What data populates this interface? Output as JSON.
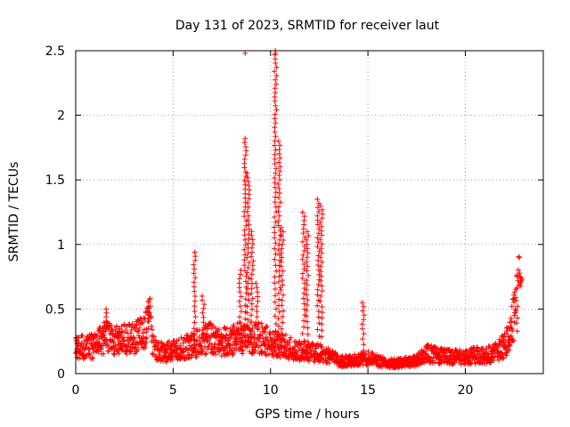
{
  "chart_data": {
    "type": "scatter",
    "title": "Day 131 of 2023, SRMTID for receiver laut",
    "xlabel": "GPS time / hours",
    "ylabel": "SRMTID / TECUs",
    "xlim": [
      0,
      24
    ],
    "ylim": [
      0,
      2.5
    ],
    "xticks": [
      0,
      5,
      10,
      15,
      20
    ],
    "xtick_labels": [
      "0",
      "5",
      "10",
      "15",
      "20"
    ],
    "yticks": [
      0,
      0.5,
      1,
      1.5,
      2,
      2.5
    ],
    "ytick_labels": [
      "0",
      "0.5",
      "1",
      "1.5",
      "2",
      "2.5"
    ],
    "grid": true,
    "marker": "+",
    "marker_color": "#ff0000",
    "baseline": [
      [
        0.0,
        0.22
      ],
      [
        0.5,
        0.2
      ],
      [
        1.0,
        0.22
      ],
      [
        1.5,
        0.28
      ],
      [
        2.0,
        0.26
      ],
      [
        2.5,
        0.27
      ],
      [
        3.0,
        0.27
      ],
      [
        3.5,
        0.32
      ],
      [
        3.8,
        0.42
      ],
      [
        4.0,
        0.2
      ],
      [
        4.5,
        0.16
      ],
      [
        5.0,
        0.18
      ],
      [
        5.5,
        0.2
      ],
      [
        6.0,
        0.22
      ],
      [
        6.5,
        0.25
      ],
      [
        7.0,
        0.28
      ],
      [
        7.5,
        0.24
      ],
      [
        8.0,
        0.26
      ],
      [
        8.5,
        0.28
      ],
      [
        9.5,
        0.28
      ],
      [
        10.0,
        0.24
      ],
      [
        11.0,
        0.2
      ],
      [
        11.5,
        0.18
      ],
      [
        12.0,
        0.17
      ],
      [
        12.5,
        0.15
      ],
      [
        13.0,
        0.14
      ],
      [
        13.5,
        0.1
      ],
      [
        14.0,
        0.1
      ],
      [
        14.5,
        0.11
      ],
      [
        15.0,
        0.12
      ],
      [
        15.5,
        0.1
      ],
      [
        16.0,
        0.08
      ],
      [
        16.5,
        0.08
      ],
      [
        17.0,
        0.09
      ],
      [
        17.5,
        0.1
      ],
      [
        18.0,
        0.16
      ],
      [
        18.5,
        0.14
      ],
      [
        19.0,
        0.13
      ],
      [
        19.5,
        0.13
      ],
      [
        20.0,
        0.13
      ],
      [
        20.5,
        0.14
      ],
      [
        21.0,
        0.14
      ],
      [
        21.5,
        0.16
      ],
      [
        22.0,
        0.22
      ],
      [
        22.3,
        0.3
      ],
      [
        22.5,
        0.45
      ],
      [
        22.8,
        0.68
      ]
    ],
    "spikes": [
      {
        "x": 1.55,
        "y_max": 0.5
      },
      {
        "x": 3.75,
        "y_max": 0.52
      },
      {
        "x": 6.1,
        "y_max": 0.94
      },
      {
        "x": 6.55,
        "y_max": 0.6
      },
      {
        "x": 8.45,
        "y_max": 0.8
      },
      {
        "x": 8.7,
        "y_max": 1.82
      },
      {
        "x": 8.85,
        "y_max": 1.55
      },
      {
        "x": 9.05,
        "y_max": 1.1
      },
      {
        "x": 9.3,
        "y_max": 0.7
      },
      {
        "x": 10.25,
        "y_max": 2.5
      },
      {
        "x": 10.45,
        "y_max": 1.8
      },
      {
        "x": 10.6,
        "y_max": 1.13
      },
      {
        "x": 11.7,
        "y_max": 1.25
      },
      {
        "x": 11.9,
        "y_max": 1.1
      },
      {
        "x": 12.45,
        "y_max": 1.35
      },
      {
        "x": 12.6,
        "y_max": 1.3
      },
      {
        "x": 14.75,
        "y_max": 0.55
      },
      {
        "x": 22.85,
        "y_max": 0.75
      }
    ],
    "isolated_points": [
      [
        8.7,
        2.48
      ],
      [
        10.25,
        2.48
      ]
    ]
  }
}
